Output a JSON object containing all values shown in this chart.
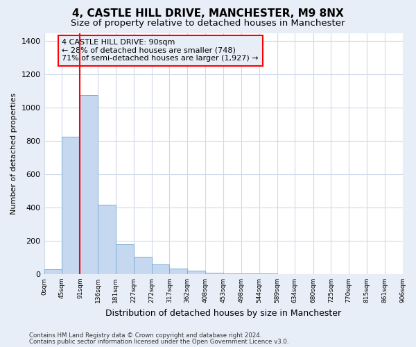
{
  "title1": "4, CASTLE HILL DRIVE, MANCHESTER, M9 8NX",
  "title2": "Size of property relative to detached houses in Manchester",
  "xlabel": "Distribution of detached houses by size in Manchester",
  "ylabel": "Number of detached properties",
  "bar_values": [
    30,
    825,
    1075,
    415,
    180,
    105,
    60,
    35,
    20,
    10,
    5,
    3,
    2,
    1,
    1,
    0,
    0,
    0,
    0,
    0
  ],
  "bin_edges": [
    0,
    45,
    91,
    136,
    181,
    227,
    272,
    317,
    362,
    408,
    453,
    498,
    544,
    589,
    634,
    680,
    725,
    770,
    815,
    861,
    906
  ],
  "tick_labels": [
    "0sqm",
    "45sqm",
    "91sqm",
    "136sqm",
    "181sqm",
    "227sqm",
    "272sqm",
    "317sqm",
    "362sqm",
    "408sqm",
    "453sqm",
    "498sqm",
    "544sqm",
    "589sqm",
    "634sqm",
    "680sqm",
    "725sqm",
    "770sqm",
    "815sqm",
    "861sqm",
    "906sqm"
  ],
  "bar_color": "#c5d8f0",
  "bar_edge_color": "#7aafd4",
  "red_line_x": 91,
  "ylim": [
    0,
    1450
  ],
  "yticks": [
    0,
    200,
    400,
    600,
    800,
    1000,
    1200,
    1400
  ],
  "annotation_title": "4 CASTLE HILL DRIVE: 90sqm",
  "annotation_line1": "← 28% of detached houses are smaller (748)",
  "annotation_line2": "71% of semi-detached houses are larger (1,927) →",
  "footer1": "Contains HM Land Registry data © Crown copyright and database right 2024.",
  "footer2": "Contains public sector information licensed under the Open Government Licence v3.0.",
  "fig_bg_color": "#e8eef7",
  "plot_bg_color": "#ffffff",
  "grid_color": "#d0daea",
  "title1_fontsize": 11,
  "title2_fontsize": 9.5
}
